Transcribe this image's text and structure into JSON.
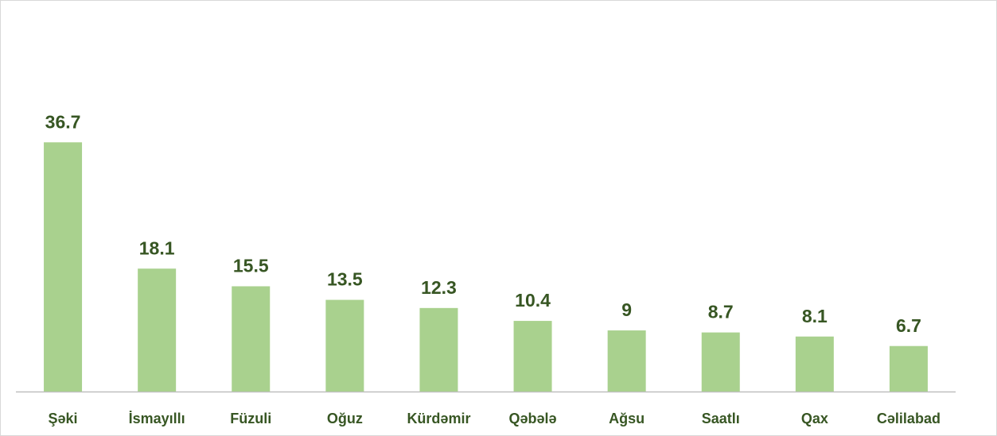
{
  "chart_data": {
    "type": "bar",
    "categories": [
      "Şəki",
      "İsmayıllı",
      "Füzuli",
      "Oğuz",
      "Kürdəmir",
      "Qəbələ",
      "Ağsu",
      "Saatlı",
      "Qax",
      "Cəlilabad"
    ],
    "values": [
      36.7,
      18.1,
      15.5,
      13.5,
      12.3,
      10.4,
      9,
      8.7,
      8.1,
      6.7
    ],
    "color": "#a9d18e",
    "ylim": [
      0,
      40
    ]
  }
}
